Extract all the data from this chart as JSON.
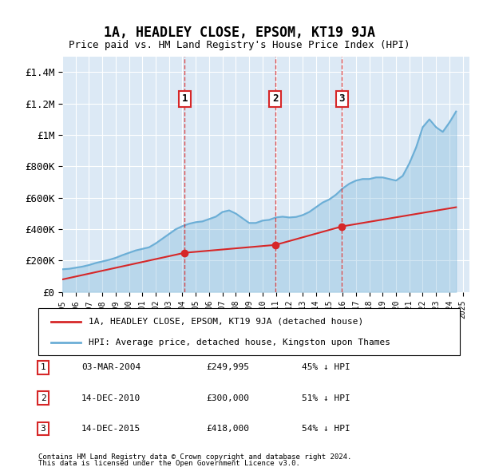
{
  "title": "1A, HEADLEY CLOSE, EPSOM, KT19 9JA",
  "subtitle": "Price paid vs. HM Land Registry's House Price Index (HPI)",
  "property_label": "1A, HEADLEY CLOSE, EPSOM, KT19 9JA (detached house)",
  "hpi_label": "HPI: Average price, detached house, Kingston upon Thames",
  "sales": [
    {
      "num": 1,
      "date": "03-MAR-2004",
      "year": 2004.17,
      "price": 249995,
      "pct": "45%",
      "dir": "↓"
    },
    {
      "num": 2,
      "date": "14-DEC-2010",
      "year": 2010.96,
      "price": 300000,
      "pct": "51%",
      "dir": "↓"
    },
    {
      "num": 3,
      "date": "14-DEC-2015",
      "year": 2015.96,
      "price": 418000,
      "pct": "54%",
      "dir": "↓"
    }
  ],
  "footnote1": "Contains HM Land Registry data © Crown copyright and database right 2024.",
  "footnote2": "This data is licensed under the Open Government Licence v3.0.",
  "hpi_color": "#6baed6",
  "property_color": "#d62728",
  "dashed_color": "#d62728",
  "background_color": "#dce9f5",
  "ylim": [
    0,
    1500000
  ],
  "xlim_start": 1995,
  "xlim_end": 2025.5,
  "hpi_data": {
    "years": [
      1995.0,
      1995.5,
      1996.0,
      1996.5,
      1997.0,
      1997.5,
      1998.0,
      1998.5,
      1999.0,
      1999.5,
      2000.0,
      2000.5,
      2001.0,
      2001.5,
      2002.0,
      2002.5,
      2003.0,
      2003.5,
      2004.0,
      2004.5,
      2005.0,
      2005.5,
      2006.0,
      2006.5,
      2007.0,
      2007.5,
      2008.0,
      2008.5,
      2009.0,
      2009.5,
      2010.0,
      2010.5,
      2011.0,
      2011.5,
      2012.0,
      2012.5,
      2013.0,
      2013.5,
      2014.0,
      2014.5,
      2015.0,
      2015.5,
      2016.0,
      2016.5,
      2017.0,
      2017.5,
      2018.0,
      2018.5,
      2019.0,
      2019.5,
      2020.0,
      2020.5,
      2021.0,
      2021.5,
      2022.0,
      2022.5,
      2023.0,
      2023.5,
      2024.0,
      2024.5
    ],
    "values": [
      145000,
      148000,
      155000,
      162000,
      172000,
      185000,
      195000,
      205000,
      218000,
      235000,
      250000,
      265000,
      275000,
      285000,
      310000,
      340000,
      370000,
      400000,
      420000,
      435000,
      445000,
      450000,
      465000,
      480000,
      510000,
      520000,
      500000,
      470000,
      440000,
      440000,
      455000,
      460000,
      475000,
      480000,
      475000,
      478000,
      490000,
      510000,
      540000,
      570000,
      590000,
      620000,
      660000,
      690000,
      710000,
      720000,
      720000,
      730000,
      730000,
      720000,
      710000,
      740000,
      820000,
      920000,
      1050000,
      1100000,
      1050000,
      1020000,
      1080000,
      1150000
    ]
  },
  "property_data": {
    "years": [
      1995.0,
      2004.17,
      2010.96,
      2015.96,
      2024.5
    ],
    "values": [
      80000,
      249995,
      300000,
      418000,
      540000
    ]
  }
}
